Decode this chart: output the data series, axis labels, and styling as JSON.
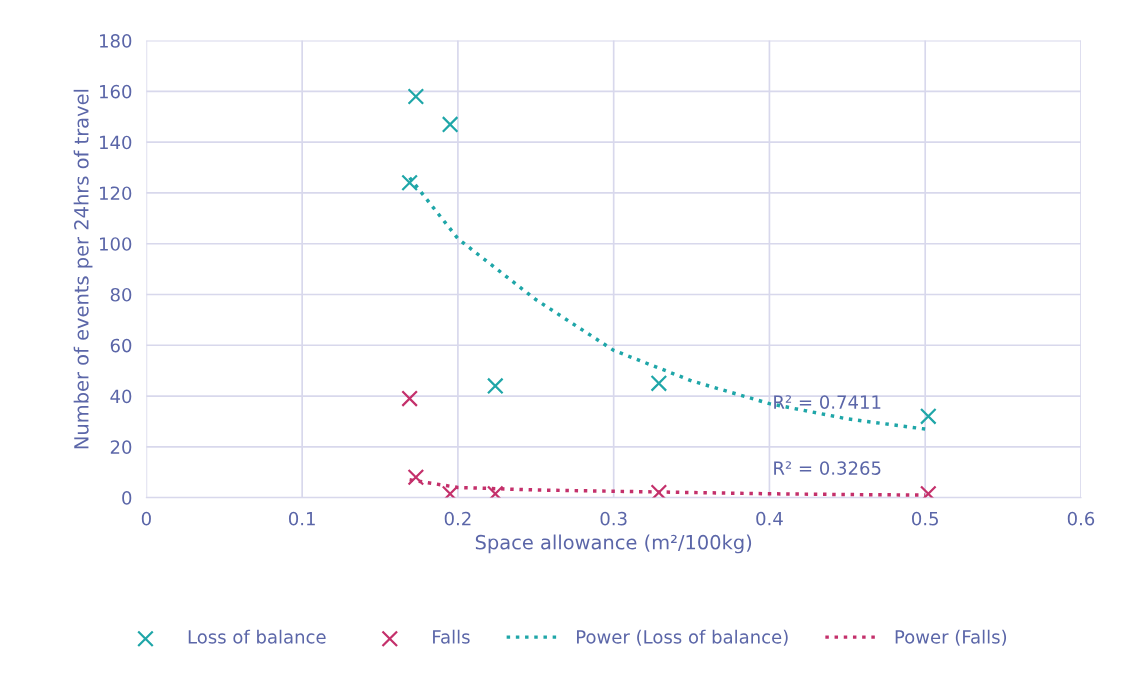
{
  "chart_data": {
    "type": "scatter",
    "xlabel": "Space allowance (m²/100kg)",
    "ylabel": "Number of events per 24hrs of travel",
    "xlim": [
      0,
      0.6
    ],
    "xticks": [
      0,
      0.1,
      0.2,
      0.3,
      0.4,
      0.5,
      0.6
    ],
    "ylim": [
      0,
      180
    ],
    "yticks": [
      0,
      20,
      40,
      60,
      80,
      100,
      120,
      140,
      160,
      180
    ],
    "grid": true,
    "legend": "bottom",
    "series": [
      {
        "name": "Loss of balance",
        "marker": "cross",
        "color": "#1fa6a8",
        "x": [
          0.173,
          0.195,
          0.169,
          0.224,
          0.329,
          0.502
        ],
        "values": [
          158,
          147,
          124,
          44,
          45,
          32
        ]
      },
      {
        "name": "Falls",
        "marker": "cross",
        "color": "#c4306b",
        "x": [
          0.169,
          0.173,
          0.195,
          0.224,
          0.329,
          0.502
        ],
        "values": [
          39,
          8,
          1.5,
          1.5,
          2,
          1.5
        ]
      },
      {
        "name": "Power (Loss of balance)",
        "type": "line",
        "line_style": "dotted",
        "marker": "none",
        "color": "#1fa6a8",
        "x": [
          0.169,
          0.2,
          0.25,
          0.3,
          0.35,
          0.4,
          0.45,
          0.5
        ],
        "values": [
          126,
          102,
          78,
          58,
          46,
          37,
          31,
          27
        ]
      },
      {
        "name": "Power (Falls)",
        "type": "line",
        "line_style": "dotted",
        "marker": "none",
        "color": "#c4306b",
        "x": [
          0.169,
          0.2,
          0.25,
          0.3,
          0.35,
          0.4,
          0.45,
          0.5
        ],
        "values": [
          7,
          4,
          3,
          2.5,
          2,
          1.5,
          1.2,
          1
        ]
      }
    ],
    "annotations": [
      "R² = 0.7411",
      "R² = 0.3265"
    ]
  }
}
